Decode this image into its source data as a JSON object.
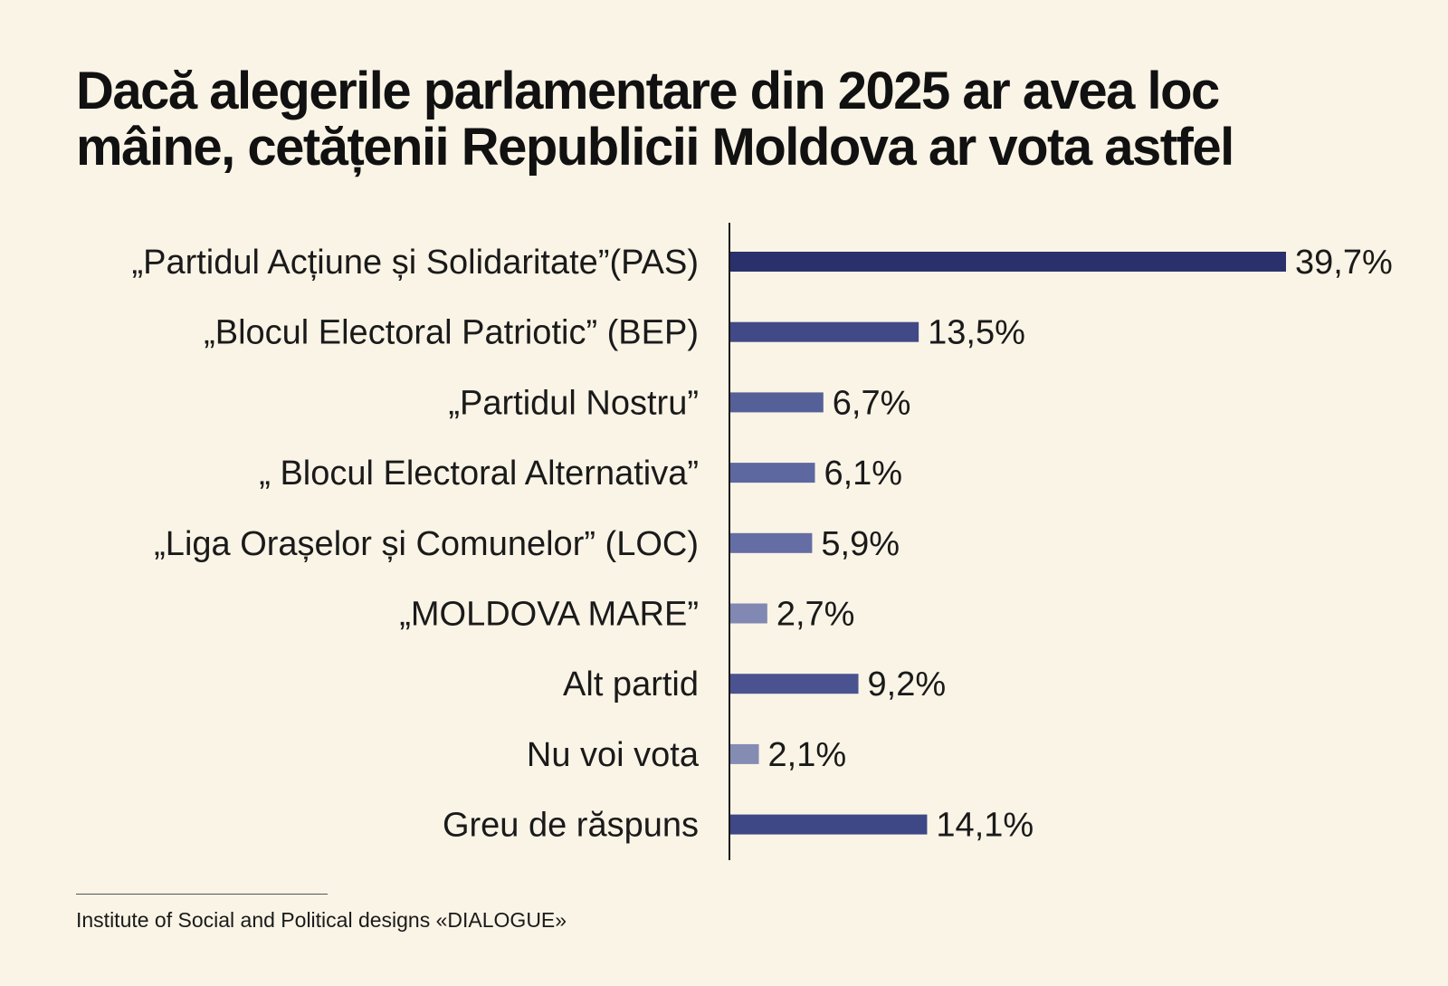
{
  "title_lines": [
    "Dacă alegerile parlamentare din 2025 ar avea loc",
    "mâine, cetățenii Republicii Moldova ar vota astfel"
  ],
  "source": "Institute of Social and Political designs «DIALOGUE»",
  "chart_data": {
    "type": "bar",
    "orientation": "horizontal",
    "title": "Dacă alegerile parlamentare din 2025 ar avea loc mâine, cetățenii Republicii Moldova ar vota astfel",
    "xlabel": "",
    "ylabel": "",
    "unit": "%",
    "xlim": [
      0,
      39.7
    ],
    "grid": false,
    "legend": "none",
    "categories": [
      "„Partidul Acțiune și Solidaritate”(PAS)",
      "„Blocul Electoral Patriotic” (BEP)",
      "„Partidul Nostru”",
      "„ Blocul Electoral Alternativa”",
      "„Liga Orașelor și Comunelor” (LOC)",
      "„MOLDOVA MARE”",
      "Alt partid",
      "Nu voi vota",
      "Greu de răspuns"
    ],
    "values": [
      39.7,
      13.5,
      6.7,
      6.1,
      5.9,
      2.7,
      9.2,
      2.1,
      14.1
    ],
    "value_labels": [
      "39,7%",
      "13,5%",
      "6,7%",
      "6,1%",
      "5,9%",
      "2,7%",
      "9,2%",
      "2,1%",
      "14,1%"
    ],
    "colors": [
      "#2a306c",
      "#414a87",
      "#566098",
      "#5e68a0",
      "#646ea4",
      "#8188b2",
      "#4a5390",
      "#858cb4",
      "#3f4886"
    ]
  }
}
